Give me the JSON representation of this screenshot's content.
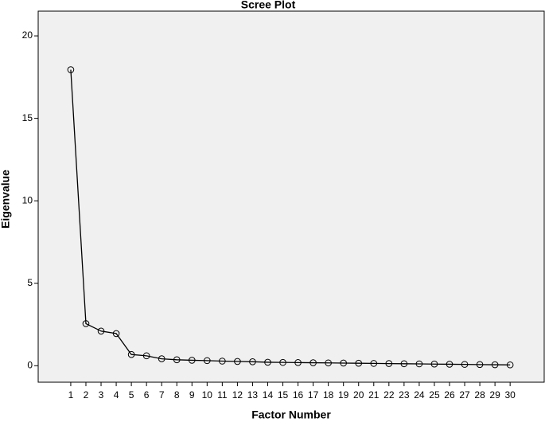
{
  "chart_data": {
    "type": "line",
    "title": "Scree Plot",
    "xlabel": "Factor Number",
    "ylabel": "Eigenvalue",
    "x": [
      1,
      2,
      3,
      4,
      5,
      6,
      7,
      8,
      9,
      10,
      11,
      12,
      13,
      14,
      15,
      16,
      17,
      18,
      19,
      20,
      21,
      22,
      23,
      24,
      25,
      26,
      27,
      28,
      29,
      30
    ],
    "values": [
      17.95,
      2.55,
      2.1,
      1.95,
      0.68,
      0.6,
      0.42,
      0.36,
      0.33,
      0.31,
      0.28,
      0.26,
      0.24,
      0.21,
      0.2,
      0.19,
      0.18,
      0.17,
      0.16,
      0.15,
      0.14,
      0.13,
      0.12,
      0.11,
      0.1,
      0.09,
      0.08,
      0.07,
      0.06,
      0.05
    ],
    "color": "#000000",
    "xlim": [
      -1.15,
      32.25
    ],
    "xticks": [
      1,
      2,
      3,
      4,
      5,
      6,
      7,
      8,
      9,
      10,
      11,
      12,
      13,
      14,
      15,
      16,
      17,
      18,
      19,
      20,
      21,
      22,
      23,
      24,
      25,
      26,
      27,
      28,
      29,
      30
    ],
    "ylim": [
      -1,
      21.5
    ],
    "yticks": [
      0,
      5,
      10,
      15,
      20
    ]
  }
}
